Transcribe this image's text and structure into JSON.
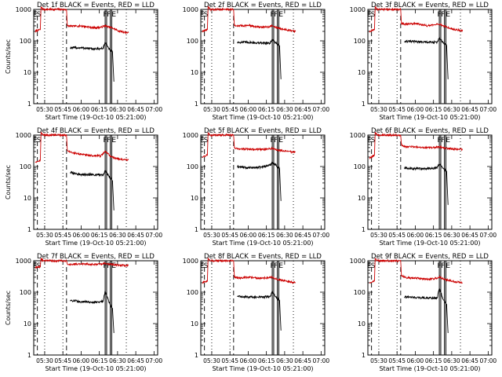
{
  "chart_data": [
    {
      "type": "line",
      "title": "Det 1f BLACK = Events, RED = LLD",
      "xlabel": "Start Time (19-Oct-10 05:21:00)",
      "ylabel": "Counts/sec",
      "xticks": [
        "05:30",
        "05:45",
        "06:00",
        "06:15",
        "06:30",
        "06:45",
        "07:00"
      ],
      "yticks": [
        "1",
        "10",
        "100",
        "1000"
      ],
      "ylim": [
        1,
        1000
      ],
      "yscale": "log",
      "flags": [
        "E",
        "S",
        "F",
        "F",
        "E"
      ],
      "series": [
        {
          "color": "#cc0000",
          "knots": [
            [
              5.37,
              200
            ],
            [
              5.44,
              230
            ],
            [
              5.45,
              1200
            ],
            [
              5.48,
              1000
            ],
            [
              5.8,
              1000
            ],
            [
              5.81,
              300
            ],
            [
              5.87,
              290
            ],
            [
              6.0,
              300
            ],
            [
              6.17,
              260
            ],
            [
              6.27,
              270
            ],
            [
              6.33,
              300
            ],
            [
              6.42,
              260
            ],
            [
              6.53,
              200
            ],
            [
              6.65,
              180
            ]
          ]
        },
        {
          "color": "#000000",
          "knots": [
            [
              5.85,
              60
            ],
            [
              6.0,
              60
            ],
            [
              6.17,
              55
            ],
            [
              6.3,
              57
            ],
            [
              6.33,
              90
            ],
            [
              6.38,
              55
            ],
            [
              6.43,
              45
            ],
            [
              6.45,
              5
            ]
          ]
        }
      ]
    },
    {
      "type": "line",
      "title": "Det 2f BLACK = Events, RED = LLD",
      "xlabel": "Start Time (19-Oct-10 05:21:00)",
      "ylabel": "",
      "xticks": [
        "05:30",
        "05:45",
        "06:00",
        "06:15",
        "06:30",
        "06:45",
        "07:00"
      ],
      "yticks": [
        "1",
        "10",
        "100",
        "1000"
      ],
      "ylim": [
        1,
        1000
      ],
      "yscale": "log",
      "flags": [
        "E",
        "S",
        "F",
        "F",
        "E"
      ],
      "series": [
        {
          "color": "#cc0000",
          "knots": [
            [
              5.37,
              200
            ],
            [
              5.44,
              230
            ],
            [
              5.45,
              1200
            ],
            [
              5.48,
              1000
            ],
            [
              5.8,
              1000
            ],
            [
              5.81,
              300
            ],
            [
              5.87,
              300
            ],
            [
              6.0,
              310
            ],
            [
              6.17,
              270
            ],
            [
              6.27,
              280
            ],
            [
              6.33,
              300
            ],
            [
              6.42,
              250
            ],
            [
              6.53,
              220
            ],
            [
              6.65,
              200
            ]
          ]
        },
        {
          "color": "#000000",
          "knots": [
            [
              5.85,
              90
            ],
            [
              6.0,
              90
            ],
            [
              6.17,
              85
            ],
            [
              6.3,
              85
            ],
            [
              6.33,
              110
            ],
            [
              6.38,
              85
            ],
            [
              6.43,
              70
            ],
            [
              6.45,
              6
            ]
          ]
        }
      ]
    },
    {
      "type": "line",
      "title": "Det 3f BLACK = Events, RED = LLD",
      "xlabel": "Start Time (19-Oct-10 05:21:00)",
      "ylabel": "",
      "xticks": [
        "05:30",
        "05:45",
        "06:00",
        "06:15",
        "06:30",
        "06:45",
        "07:00"
      ],
      "yticks": [
        "1",
        "10",
        "100",
        "1000"
      ],
      "ylim": [
        1,
        1000
      ],
      "yscale": "log",
      "flags": [
        "E",
        "S",
        "F",
        "F",
        "E"
      ],
      "series": [
        {
          "color": "#cc0000",
          "knots": [
            [
              5.37,
              200
            ],
            [
              5.44,
              230
            ],
            [
              5.45,
              1200
            ],
            [
              5.48,
              1000
            ],
            [
              5.8,
              1000
            ],
            [
              5.81,
              350
            ],
            [
              5.87,
              340
            ],
            [
              6.0,
              360
            ],
            [
              6.17,
              300
            ],
            [
              6.27,
              320
            ],
            [
              6.33,
              340
            ],
            [
              6.42,
              280
            ],
            [
              6.53,
              230
            ],
            [
              6.65,
              210
            ]
          ]
        },
        {
          "color": "#000000",
          "knots": [
            [
              5.85,
              95
            ],
            [
              6.0,
              95
            ],
            [
              6.17,
              90
            ],
            [
              6.3,
              90
            ],
            [
              6.33,
              120
            ],
            [
              6.38,
              90
            ],
            [
              6.43,
              70
            ],
            [
              6.45,
              6
            ]
          ]
        }
      ]
    },
    {
      "type": "line",
      "title": "Det 4f BLACK = Events, RED = LLD",
      "xlabel": "Start Time (19-Oct-10 05:21:00)",
      "ylabel": "Counts/sec",
      "xticks": [
        "05:30",
        "05:45",
        "06:00",
        "06:15",
        "06:30",
        "06:45",
        "07:00"
      ],
      "yticks": [
        "1",
        "10",
        "100",
        "1000"
      ],
      "ylim": [
        1,
        1000
      ],
      "yscale": "log",
      "flags": [
        "E",
        "S",
        "F",
        "F",
        "E"
      ],
      "series": [
        {
          "color": "#cc0000",
          "knots": [
            [
              5.37,
              140
            ],
            [
              5.44,
              160
            ],
            [
              5.45,
              1200
            ],
            [
              5.48,
              1000
            ],
            [
              5.8,
              1000
            ],
            [
              5.81,
              330
            ],
            [
              5.87,
              280
            ],
            [
              6.0,
              240
            ],
            [
              6.17,
              220
            ],
            [
              6.27,
              220
            ],
            [
              6.33,
              300
            ],
            [
              6.42,
              200
            ],
            [
              6.53,
              170
            ],
            [
              6.65,
              160
            ]
          ]
        },
        {
          "color": "#000000",
          "knots": [
            [
              5.85,
              65
            ],
            [
              6.0,
              55
            ],
            [
              6.17,
              55
            ],
            [
              6.3,
              55
            ],
            [
              6.33,
              75
            ],
            [
              6.38,
              50
            ],
            [
              6.43,
              35
            ],
            [
              6.45,
              4
            ]
          ]
        }
      ]
    },
    {
      "type": "line",
      "title": "Det 5f BLACK = Events, RED = LLD",
      "xlabel": "Start Time (19-Oct-10 05:21:00)",
      "ylabel": "",
      "xticks": [
        "05:30",
        "05:45",
        "06:00",
        "06:15",
        "06:30",
        "06:45",
        "07:00"
      ],
      "yticks": [
        "1",
        "10",
        "100",
        "1000"
      ],
      "ylim": [
        1,
        1000
      ],
      "yscale": "log",
      "flags": [
        "E",
        "S",
        "F",
        "F",
        "E"
      ],
      "series": [
        {
          "color": "#cc0000",
          "knots": [
            [
              5.37,
              200
            ],
            [
              5.44,
              230
            ],
            [
              5.45,
              1200
            ],
            [
              5.48,
              1000
            ],
            [
              5.8,
              1000
            ],
            [
              5.81,
              400
            ],
            [
              5.87,
              360
            ],
            [
              6.0,
              360
            ],
            [
              6.17,
              350
            ],
            [
              6.27,
              360
            ],
            [
              6.33,
              380
            ],
            [
              6.42,
              330
            ],
            [
              6.53,
              300
            ],
            [
              6.65,
              290
            ]
          ]
        },
        {
          "color": "#000000",
          "knots": [
            [
              5.85,
              100
            ],
            [
              6.0,
              90
            ],
            [
              6.17,
              95
            ],
            [
              6.3,
              110
            ],
            [
              6.33,
              140
            ],
            [
              6.38,
              110
            ],
            [
              6.43,
              85
            ],
            [
              6.45,
              8
            ]
          ]
        }
      ]
    },
    {
      "type": "line",
      "title": "Det 6f BLACK = Events, RED = LLD",
      "xlabel": "Start Time (19-Oct-10 05:21:00)",
      "ylabel": "",
      "xticks": [
        "05:30",
        "05:45",
        "06:00",
        "06:15",
        "06:30",
        "06:45",
        "07:00"
      ],
      "yticks": [
        "1",
        "10",
        "100",
        "1000"
      ],
      "ylim": [
        1,
        1000
      ],
      "yscale": "log",
      "flags": [
        "E",
        "S",
        "F",
        "F",
        "E"
      ],
      "series": [
        {
          "color": "#cc0000",
          "knots": [
            [
              5.37,
              180
            ],
            [
              5.44,
              230
            ],
            [
              5.45,
              1200
            ],
            [
              5.48,
              1000
            ],
            [
              5.8,
              1000
            ],
            [
              5.81,
              480
            ],
            [
              5.87,
              430
            ],
            [
              6.0,
              420
            ],
            [
              6.17,
              400
            ],
            [
              6.27,
              400
            ],
            [
              6.33,
              420
            ],
            [
              6.42,
              380
            ],
            [
              6.53,
              360
            ],
            [
              6.65,
              350
            ]
          ]
        },
        {
          "color": "#000000",
          "knots": [
            [
              5.85,
              90
            ],
            [
              6.0,
              85
            ],
            [
              6.17,
              85
            ],
            [
              6.3,
              90
            ],
            [
              6.33,
              120
            ],
            [
              6.38,
              90
            ],
            [
              6.43,
              70
            ],
            [
              6.45,
              6
            ]
          ]
        }
      ]
    },
    {
      "type": "line",
      "title": "Det 7f BLACK = Events, RED = LLD",
      "xlabel": "Start Time (19-Oct-10 05:21:00)",
      "ylabel": "Counts/sec",
      "xticks": [
        "05:30",
        "05:45",
        "06:00",
        "06:15",
        "06:30",
        "06:45",
        "07:00"
      ],
      "yticks": [
        "1",
        "10",
        "100",
        "1000"
      ],
      "ylim": [
        1,
        1000
      ],
      "yscale": "log",
      "flags": [
        "E",
        "S",
        "F",
        "F",
        "E"
      ],
      "series": [
        {
          "color": "#cc0000",
          "knots": [
            [
              5.37,
              600
            ],
            [
              5.44,
              650
            ],
            [
              5.45,
              1200
            ],
            [
              5.48,
              1000
            ],
            [
              5.8,
              1000
            ],
            [
              5.81,
              800
            ],
            [
              5.87,
              750
            ],
            [
              6.0,
              800
            ],
            [
              6.17,
              760
            ],
            [
              6.27,
              780
            ],
            [
              6.33,
              820
            ],
            [
              6.42,
              760
            ],
            [
              6.53,
              720
            ],
            [
              6.65,
              700
            ]
          ]
        },
        {
          "color": "#000000",
          "knots": [
            [
              5.85,
              55
            ],
            [
              6.0,
              50
            ],
            [
              6.17,
              48
            ],
            [
              6.3,
              50
            ],
            [
              6.33,
              110
            ],
            [
              6.38,
              50
            ],
            [
              6.43,
              30
            ],
            [
              6.45,
              5
            ]
          ]
        }
      ]
    },
    {
      "type": "line",
      "title": "Det 8f BLACK = Events, RED = LLD",
      "xlabel": "Start Time (19-Oct-10 05:21:00)",
      "ylabel": "",
      "xticks": [
        "05:30",
        "05:45",
        "06:00",
        "06:15",
        "06:30",
        "06:45",
        "07:00"
      ],
      "yticks": [
        "1",
        "10",
        "100",
        "1000"
      ],
      "ylim": [
        1,
        1000
      ],
      "yscale": "log",
      "flags": [
        "E",
        "S",
        "F",
        "F",
        "E"
      ],
      "series": [
        {
          "color": "#cc0000",
          "knots": [
            [
              5.37,
              200
            ],
            [
              5.44,
              230
            ],
            [
              5.45,
              1200
            ],
            [
              5.48,
              1000
            ],
            [
              5.8,
              1000
            ],
            [
              5.81,
              300
            ],
            [
              5.87,
              280
            ],
            [
              6.0,
              300
            ],
            [
              6.17,
              280
            ],
            [
              6.27,
              290
            ],
            [
              6.33,
              300
            ],
            [
              6.42,
              250
            ],
            [
              6.53,
              220
            ],
            [
              6.65,
              200
            ]
          ]
        },
        {
          "color": "#000000",
          "knots": [
            [
              5.85,
              75
            ],
            [
              6.0,
              70
            ],
            [
              6.17,
              70
            ],
            [
              6.3,
              72
            ],
            [
              6.33,
              100
            ],
            [
              6.38,
              70
            ],
            [
              6.43,
              55
            ],
            [
              6.45,
              6
            ]
          ]
        }
      ]
    },
    {
      "type": "line",
      "title": "Det 9f BLACK = Events, RED = LLD",
      "xlabel": "Start Time (19-Oct-10 05:21:00)",
      "ylabel": "",
      "xticks": [
        "05:30",
        "05:45",
        "06:00",
        "06:15",
        "06:30",
        "06:45",
        "07:00"
      ],
      "yticks": [
        "1",
        "10",
        "100",
        "1000"
      ],
      "ylim": [
        1,
        1000
      ],
      "yscale": "log",
      "flags": [
        "E",
        "S",
        "F",
        "F",
        "E"
      ],
      "series": [
        {
          "color": "#cc0000",
          "knots": [
            [
              5.37,
              200
            ],
            [
              5.44,
              230
            ],
            [
              5.45,
              1200
            ],
            [
              5.48,
              1000
            ],
            [
              5.8,
              1000
            ],
            [
              5.81,
              330
            ],
            [
              5.87,
              290
            ],
            [
              6.0,
              280
            ],
            [
              6.17,
              260
            ],
            [
              6.27,
              270
            ],
            [
              6.33,
              300
            ],
            [
              6.42,
              250
            ],
            [
              6.53,
              220
            ],
            [
              6.65,
              200
            ]
          ]
        },
        {
          "color": "#000000",
          "knots": [
            [
              5.85,
              70
            ],
            [
              6.0,
              68
            ],
            [
              6.17,
              65
            ],
            [
              6.3,
              65
            ],
            [
              6.33,
              130
            ],
            [
              6.38,
              60
            ],
            [
              6.43,
              40
            ],
            [
              6.45,
              5
            ]
          ]
        }
      ]
    }
  ]
}
